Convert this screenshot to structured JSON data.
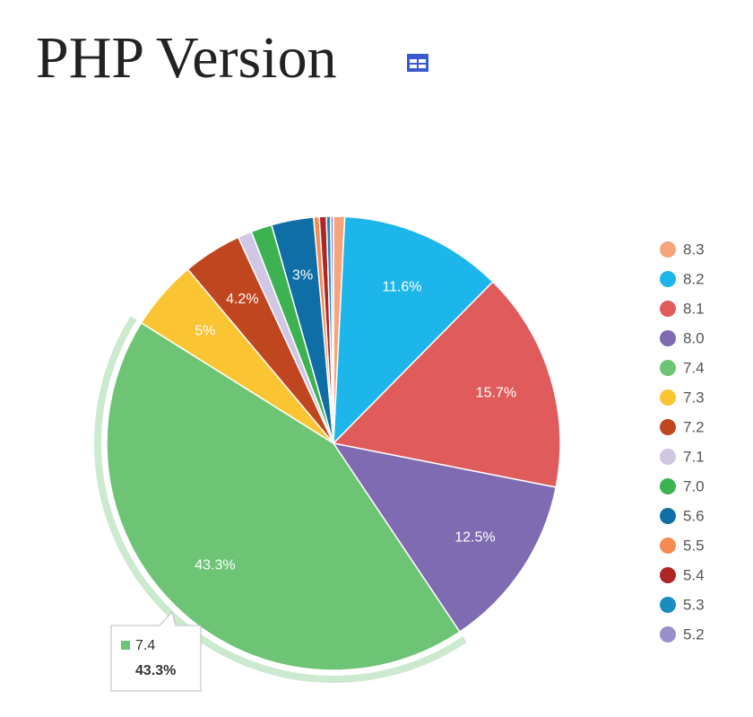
{
  "chart_data": {
    "type": "pie",
    "title": "PHP Version",
    "categories": [
      "8.3",
      "8.2",
      "8.1",
      "8.0",
      "7.4",
      "7.3",
      "7.2",
      "7.1",
      "7.0",
      "5.6",
      "5.5",
      "5.4",
      "5.3",
      "5.2"
    ],
    "values": [
      0.8,
      11.6,
      15.7,
      12.5,
      43.3,
      5,
      4.2,
      1.0,
      1.5,
      3,
      0.4,
      0.5,
      0.3,
      0.2
    ],
    "value_labels": [
      null,
      "11.6%",
      "15.7%",
      "12.5%",
      "43.3%",
      "5%",
      "4.2%",
      null,
      null,
      "3%",
      null,
      null,
      null,
      null
    ],
    "colors": [
      "#f5a47c",
      "#1db6ea",
      "#e05b5c",
      "#7e6bb1",
      "#6dc475",
      "#fbc433",
      "#c0461f",
      "#cfc7e3",
      "#3db250",
      "#0f6ea6",
      "#f58b50",
      "#b02525",
      "#1a8dc0",
      "#9b8fca"
    ],
    "highlighted": 4,
    "legend_position": "right"
  }
}
